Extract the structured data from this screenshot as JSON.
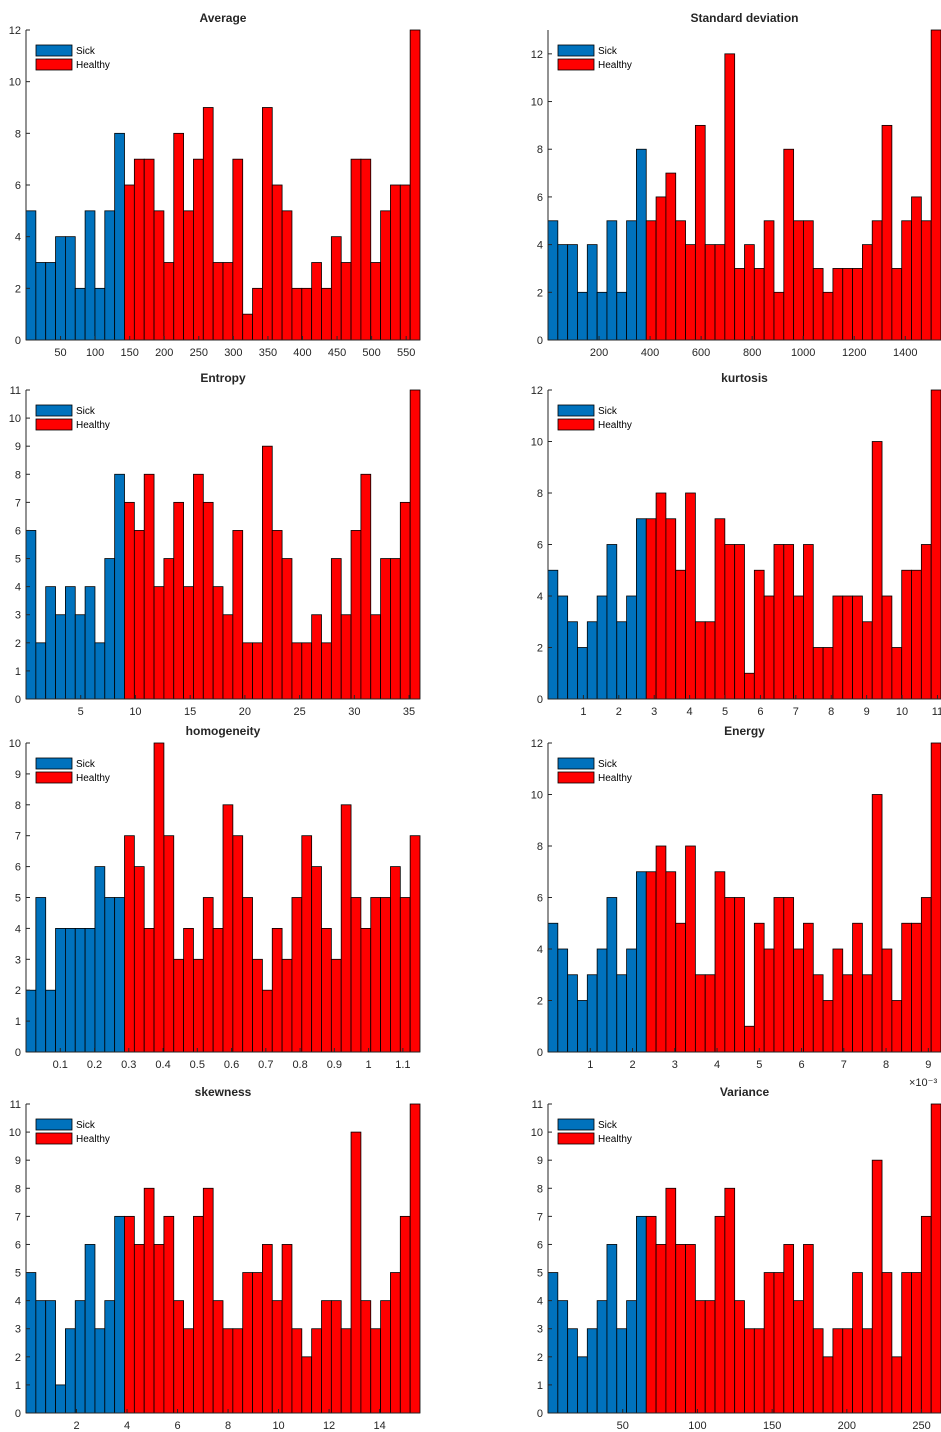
{
  "colors": {
    "sick": "#0072BD",
    "healthy": "#FF0000",
    "bar_edge": "#000000",
    "axis": "#262626"
  },
  "chart_data": [
    {
      "type": "bar",
      "title": "Average",
      "xticks": [
        "50",
        "100",
        "150",
        "200",
        "250",
        "300",
        "350",
        "400",
        "450",
        "500",
        "550"
      ],
      "xtick_values": [
        50,
        100,
        150,
        200,
        250,
        300,
        350,
        400,
        450,
        500,
        550
      ],
      "xlim": [
        0,
        570
      ],
      "yticks": [
        "0",
        "2",
        "4",
        "6",
        "8",
        "10",
        "12"
      ],
      "ylim": [
        0,
        12
      ],
      "sick": [
        5,
        3,
        3,
        4,
        4,
        2,
        5,
        2,
        5,
        8
      ],
      "healthy": [
        6,
        7,
        7,
        5,
        3,
        8,
        5,
        7,
        9,
        3,
        3,
        7,
        1,
        2,
        9,
        6,
        5,
        2,
        2,
        3,
        2,
        4,
        3,
        7,
        7,
        3,
        5,
        6,
        6,
        12
      ],
      "legend": [
        "Sick",
        "Healthy"
      ],
      "legend_location": "top-left"
    },
    {
      "type": "bar",
      "title": "Standard deviation",
      "xticks": [
        "200",
        "400",
        "600",
        "800",
        "1000",
        "1200",
        "1400"
      ],
      "xtick_values": [
        200,
        400,
        600,
        800,
        1000,
        1200,
        1400
      ],
      "xlim": [
        0,
        1540
      ],
      "yticks": [
        "0",
        "2",
        "4",
        "6",
        "8",
        "10",
        "12"
      ],
      "ylim": [
        0,
        13
      ],
      "sick": [
        5,
        4,
        4,
        2,
        4,
        2,
        5,
        2,
        5,
        8
      ],
      "healthy": [
        5,
        6,
        7,
        5,
        4,
        9,
        4,
        4,
        12,
        3,
        4,
        3,
        5,
        2,
        8,
        5,
        5,
        3,
        2,
        3,
        3,
        3,
        4,
        5,
        9,
        3,
        5,
        6,
        5,
        13
      ],
      "legend": [
        "Sick",
        "Healthy"
      ],
      "legend_location": "top-left"
    },
    {
      "type": "bar",
      "title": "Entropy",
      "xticks": [
        "5",
        "10",
        "15",
        "20",
        "25",
        "30",
        "35"
      ],
      "xtick_values": [
        5,
        10,
        15,
        20,
        25,
        30,
        35
      ],
      "xlim": [
        0,
        36
      ],
      "yticks": [
        "0",
        "1",
        "2",
        "3",
        "4",
        "5",
        "6",
        "7",
        "8",
        "9",
        "10",
        "11"
      ],
      "ylim": [
        0,
        11
      ],
      "sick": [
        6,
        2,
        4,
        3,
        4,
        3,
        4,
        2,
        5,
        8
      ],
      "healthy": [
        7,
        6,
        8,
        4,
        5,
        7,
        4,
        8,
        7,
        4,
        3,
        6,
        2,
        2,
        9,
        6,
        5,
        2,
        2,
        3,
        2,
        5,
        3,
        6,
        8,
        3,
        5,
        5,
        7,
        11
      ],
      "legend": [
        "Sick",
        "Healthy"
      ],
      "legend_location": "top-left"
    },
    {
      "type": "bar",
      "title": "kurtosis",
      "xticks": [
        "1",
        "2",
        "3",
        "4",
        "5",
        "6",
        "7",
        "8",
        "9",
        "10",
        "11"
      ],
      "xtick_values": [
        1,
        2,
        3,
        4,
        5,
        6,
        7,
        8,
        9,
        10,
        11
      ],
      "xlim": [
        0,
        11.1
      ],
      "yticks": [
        "0",
        "2",
        "4",
        "6",
        "8",
        "10",
        "12"
      ],
      "ylim": [
        0,
        12
      ],
      "sick": [
        5,
        4,
        3,
        2,
        3,
        4,
        6,
        3,
        4,
        7
      ],
      "healthy": [
        7,
        8,
        7,
        5,
        8,
        3,
        3,
        7,
        6,
        6,
        1,
        5,
        4,
        6,
        6,
        4,
        6,
        2,
        2,
        4,
        4,
        4,
        3,
        10,
        4,
        2,
        5,
        5,
        6,
        12
      ],
      "legend": [
        "Sick",
        "Healthy"
      ],
      "legend_location": "top-left"
    },
    {
      "type": "bar",
      "title": "homogeneity",
      "xticks": [
        "0.1",
        "0.2",
        "0.3",
        "0.4",
        "0.5",
        "0.6",
        "0.7",
        "0.8",
        "0.9",
        "1",
        "1.1"
      ],
      "xtick_values": [
        0.1,
        0.2,
        0.3,
        0.4,
        0.5,
        0.6,
        0.7,
        0.8,
        0.9,
        1,
        1.1
      ],
      "xlim": [
        0,
        1.15
      ],
      "yticks": [
        "0",
        "1",
        "2",
        "3",
        "4",
        "5",
        "6",
        "7",
        "8",
        "9",
        "10"
      ],
      "ylim": [
        0,
        10
      ],
      "sick": [
        2,
        5,
        2,
        4,
        4,
        4,
        4,
        6,
        5,
        5
      ],
      "healthy": [
        7,
        6,
        4,
        10,
        7,
        3,
        4,
        3,
        5,
        4,
        8,
        7,
        5,
        3,
        2,
        4,
        3,
        5,
        7,
        6,
        4,
        3,
        8,
        5,
        4,
        5,
        5,
        6,
        5,
        7
      ],
      "legend": [
        "Sick",
        "Healthy"
      ],
      "legend_location": "top-left"
    },
    {
      "type": "bar",
      "title": "Energy",
      "xticks": [
        "1",
        "2",
        "3",
        "4",
        "5",
        "6",
        "7",
        "8",
        "9"
      ],
      "xtick_values": [
        1,
        2,
        3,
        4,
        5,
        6,
        7,
        8,
        9
      ],
      "xlim": [
        0,
        9.3
      ],
      "x_exponent_label": "×10⁻³",
      "yticks": [
        "0",
        "2",
        "4",
        "6",
        "8",
        "10",
        "12"
      ],
      "ylim": [
        0,
        12
      ],
      "sick": [
        5,
        4,
        3,
        2,
        3,
        4,
        6,
        3,
        4,
        7
      ],
      "healthy": [
        7,
        8,
        7,
        5,
        8,
        3,
        3,
        7,
        6,
        6,
        1,
        5,
        4,
        6,
        6,
        4,
        5,
        3,
        2,
        4,
        3,
        5,
        3,
        10,
        4,
        2,
        5,
        5,
        6,
        12
      ],
      "legend": [
        "Sick",
        "Healthy"
      ],
      "legend_location": "top-left"
    },
    {
      "type": "bar",
      "title": "skewness",
      "xticks": [
        "2",
        "4",
        "6",
        "8",
        "10",
        "12",
        "14"
      ],
      "xtick_values": [
        2,
        4,
        6,
        8,
        10,
        12,
        14
      ],
      "xlim": [
        0,
        15.6
      ],
      "yticks": [
        "0",
        "1",
        "2",
        "3",
        "4",
        "5",
        "6",
        "7",
        "8",
        "9",
        "10",
        "11"
      ],
      "ylim": [
        0,
        11
      ],
      "sick": [
        5,
        4,
        4,
        1,
        3,
        4,
        6,
        3,
        4,
        7
      ],
      "healthy": [
        7,
        6,
        8,
        6,
        7,
        4,
        3,
        7,
        8,
        4,
        3,
        3,
        5,
        5,
        6,
        4,
        6,
        3,
        2,
        3,
        4,
        4,
        3,
        10,
        4,
        3,
        4,
        5,
        7,
        11
      ],
      "legend": [
        "Sick",
        "Healthy"
      ],
      "legend_location": "top-left"
    },
    {
      "type": "bar",
      "title": "Variance",
      "xticks": [
        "50",
        "100",
        "150",
        "200",
        "250"
      ],
      "xtick_values": [
        50,
        100,
        150,
        200,
        250
      ],
      "xlim": [
        0,
        263
      ],
      "yticks": [
        "0",
        "1",
        "2",
        "3",
        "4",
        "5",
        "6",
        "7",
        "8",
        "9",
        "10",
        "11"
      ],
      "ylim": [
        0,
        11
      ],
      "sick": [
        5,
        4,
        3,
        2,
        3,
        4,
        6,
        3,
        4,
        7
      ],
      "healthy": [
        7,
        6,
        8,
        6,
        6,
        4,
        4,
        7,
        8,
        4,
        3,
        3,
        5,
        5,
        6,
        4,
        6,
        3,
        2,
        3,
        3,
        5,
        3,
        9,
        5,
        2,
        5,
        5,
        7,
        11
      ],
      "legend": [
        "Sick",
        "Healthy"
      ],
      "legend_location": "top-left"
    }
  ]
}
